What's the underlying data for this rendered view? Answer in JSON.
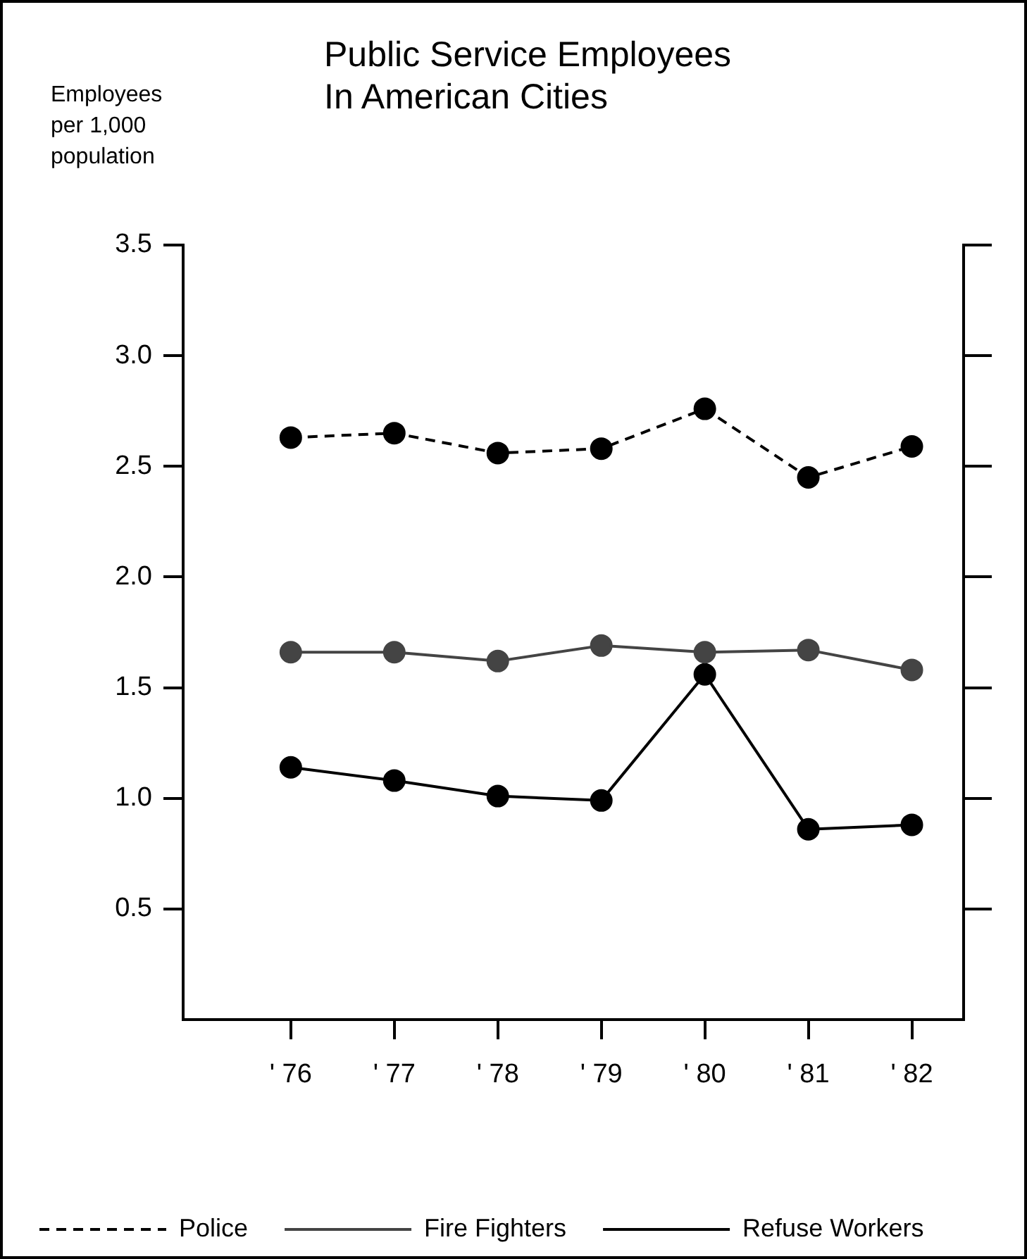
{
  "chart_data": {
    "type": "line",
    "title": "Public Service Employees\nIn American Cities",
    "ylabel": "Employees per 1,000 population",
    "categories": [
      "' 76",
      "' 77",
      "' 78",
      "' 79",
      "' 80",
      "' 81",
      "' 82"
    ],
    "ylim": [
      0,
      3.5
    ],
    "yticks": [
      0.5,
      {
        "value": 1.0,
        "label": "1.0"
      },
      1.5,
      {
        "value": 2.0,
        "label": "2.0"
      },
      2.5,
      {
        "value": 3.0,
        "label": "3.0"
      },
      3.5
    ],
    "series": [
      {
        "name": "Police",
        "color": "#000000",
        "line_style": "dashed",
        "values": [
          2.63,
          2.65,
          2.56,
          2.58,
          2.76,
          2.45,
          2.59
        ]
      },
      {
        "name": "Fire Fighters",
        "color": "#444444",
        "line_style": "solid",
        "values": [
          1.66,
          1.66,
          1.62,
          1.69,
          1.66,
          1.67,
          1.58
        ]
      },
      {
        "name": "Refuse Workers",
        "color": "#000000",
        "line_style": "solid",
        "values": [
          1.14,
          1.08,
          1.01,
          0.99,
          1.56,
          0.86,
          0.88
        ]
      }
    ],
    "marker": "circle",
    "grid": false,
    "legend": "bottom left"
  }
}
